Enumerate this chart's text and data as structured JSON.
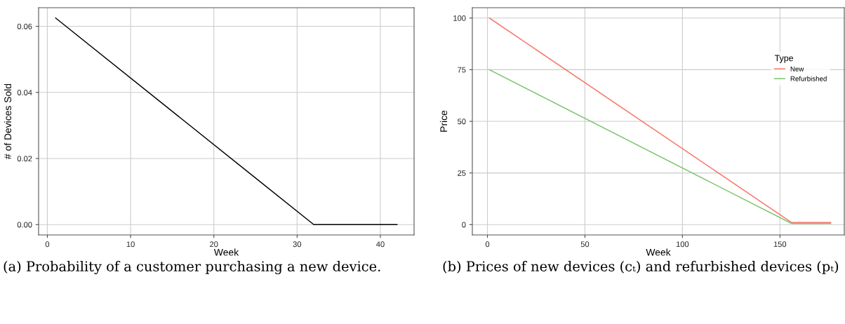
{
  "chart_data": [
    {
      "type": "line",
      "xlabel": "Week",
      "ylabel": "# of Devices Sold",
      "x": [
        1,
        32,
        42
      ],
      "series": [
        {
          "color": "#000000",
          "values": [
            0.0625,
            0,
            0
          ]
        }
      ],
      "xlim": [
        -1.05,
        44.05
      ],
      "xticks": [
        0,
        10,
        20,
        30,
        40
      ],
      "ylim": [
        -0.003125,
        0.065625
      ],
      "yticks": [
        {
          "value": 0,
          "label": "0.00"
        },
        {
          "value": 0.02,
          "label": "0.02"
        },
        {
          "value": 0.04,
          "label": "0.04"
        },
        {
          "value": 0.06,
          "label": "0.06"
        }
      ],
      "grid": true,
      "legend": false,
      "annotations": [
        "(a) Probability of a customer purchasing a new device."
      ]
    },
    {
      "type": "line",
      "xlabel": "Week",
      "ylabel": "Price",
      "x": [
        1,
        156,
        176
      ],
      "legend_title": "Type",
      "series": [
        {
          "name": "New",
          "color": "#f8766d",
          "values": [
            100,
            1,
            1
          ]
        },
        {
          "name": "Refurbished",
          "color": "#7cc66f",
          "values": [
            75,
            0.5,
            0.5
          ]
        }
      ],
      "xlim": [
        -7.75,
        183
      ],
      "xticks": [
        0,
        50,
        100,
        150
      ],
      "ylim": [
        -5,
        105
      ],
      "yticks": [
        0,
        25,
        50,
        75,
        100
      ],
      "grid": true,
      "legend": "top right",
      "annotations": [
        "(b) Prices of new devices (cₜ) and refurbished devices (pₜ)"
      ]
    }
  ]
}
